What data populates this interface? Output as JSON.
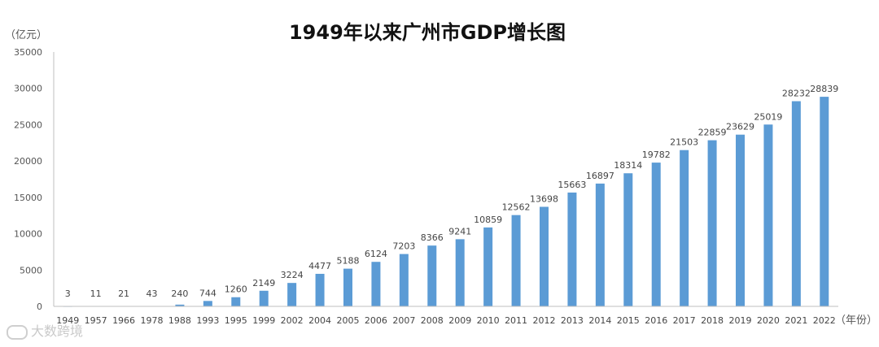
{
  "watermark": "大数跨境",
  "chart_data": {
    "type": "bar",
    "title": "1949年以来广州市GDP增长图",
    "ylabel": "（亿元）",
    "xlabel": "（年份）",
    "ylim": [
      0,
      35000
    ],
    "yticks": [
      0,
      5000,
      10000,
      15000,
      20000,
      25000,
      30000,
      35000
    ],
    "grid": false,
    "bar_color": "#5b9bd5",
    "categories": [
      "1949",
      "1957",
      "1966",
      "1978",
      "1988",
      "1993",
      "1995",
      "1999",
      "2002",
      "2004",
      "2005",
      "2006",
      "2007",
      "2008",
      "2009",
      "2010",
      "2011",
      "2012",
      "2013",
      "2014",
      "2015",
      "2016",
      "2017",
      "2018",
      "2019",
      "2020",
      "2021",
      "2022"
    ],
    "values": [
      3,
      11,
      21,
      43,
      240,
      744,
      1260,
      2149,
      3224,
      4477,
      5188,
      6124,
      7203,
      8366,
      9241,
      10859,
      12562,
      13698,
      15663,
      16897,
      18314,
      19782,
      21503,
      22859,
      23629,
      25019,
      28232,
      28839
    ]
  }
}
